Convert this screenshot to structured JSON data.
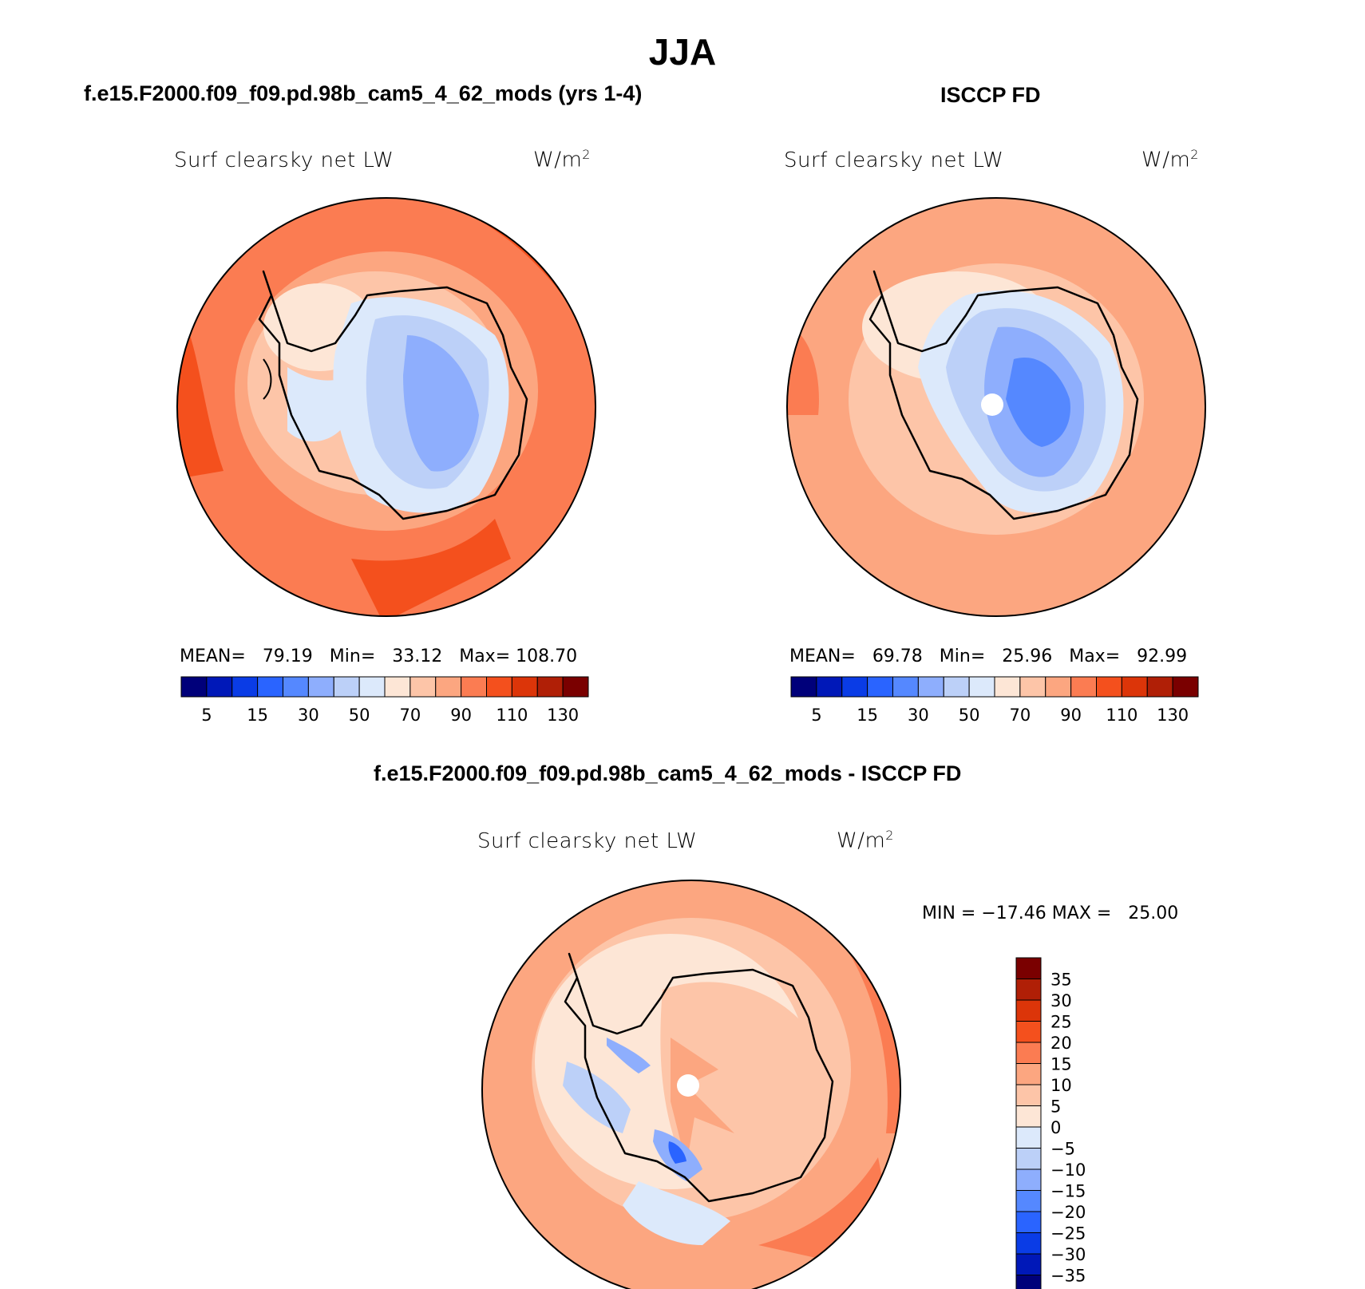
{
  "title": "JJA",
  "panels": {
    "model": {
      "heading": "f.e15.F2000.f09_f09.pd.98b_cam5_4_62_mods (yrs 1-4)",
      "variable": "Surf clearsky net LW",
      "units": "W/m",
      "units_exp": "2",
      "mean_label": "MEAN=",
      "mean": "79.19",
      "min_label": "Min=",
      "min": "33.12",
      "max_label": "Max=",
      "max": "108.70"
    },
    "obs": {
      "heading": "ISCCP FD",
      "variable": "Surf clearsky net LW",
      "units": "W/m",
      "units_exp": "2",
      "mean_label": "MEAN=",
      "mean": "69.78",
      "min_label": "Min=",
      "min": "25.96",
      "max_label": "Max=",
      "max": "92.99"
    },
    "diff": {
      "heading": "f.e15.F2000.f09_f09.pd.98b_cam5_4_62_mods - ISCCP FD",
      "variable": "Surf clearsky net LW",
      "units": "W/m",
      "units_exp": "2",
      "min_label": "MIN =",
      "min": "−17.46",
      "max_label": "MAX =",
      "max": "25.00"
    }
  },
  "colorbar_abs": {
    "colors": [
      "#00007a",
      "#0018b8",
      "#0a3ce6",
      "#2a64ff",
      "#5588ff",
      "#8eaefd",
      "#bcd0f8",
      "#dce9fb",
      "#fde6d6",
      "#fdc5a8",
      "#fca680",
      "#fb7c52",
      "#f4501d",
      "#dc3509",
      "#b01f06",
      "#7a0000"
    ],
    "labels": [
      "5",
      "15",
      "30",
      "50",
      "70",
      "90",
      "110",
      "130"
    ]
  },
  "colorbar_diff": {
    "colors": [
      "#7a0000",
      "#b01f06",
      "#dc3509",
      "#f4501d",
      "#fb7c52",
      "#fca680",
      "#fdc5a8",
      "#fde6d6",
      "#dce9fb",
      "#bcd0f8",
      "#8eaefd",
      "#5588ff",
      "#2a64ff",
      "#0a3ce6",
      "#0018b8",
      "#00007a"
    ],
    "labels": [
      "35",
      "30",
      "25",
      "20",
      "15",
      "10",
      "5",
      "0",
      "−5",
      "−10",
      "−15",
      "−20",
      "−25",
      "−30",
      "−35"
    ]
  },
  "map_fill_colors": {
    "outer_model": "#fb7c52",
    "outer_obs": "#fca680",
    "outer_diff": "#fca680",
    "inner_dark": "#f4501d"
  }
}
